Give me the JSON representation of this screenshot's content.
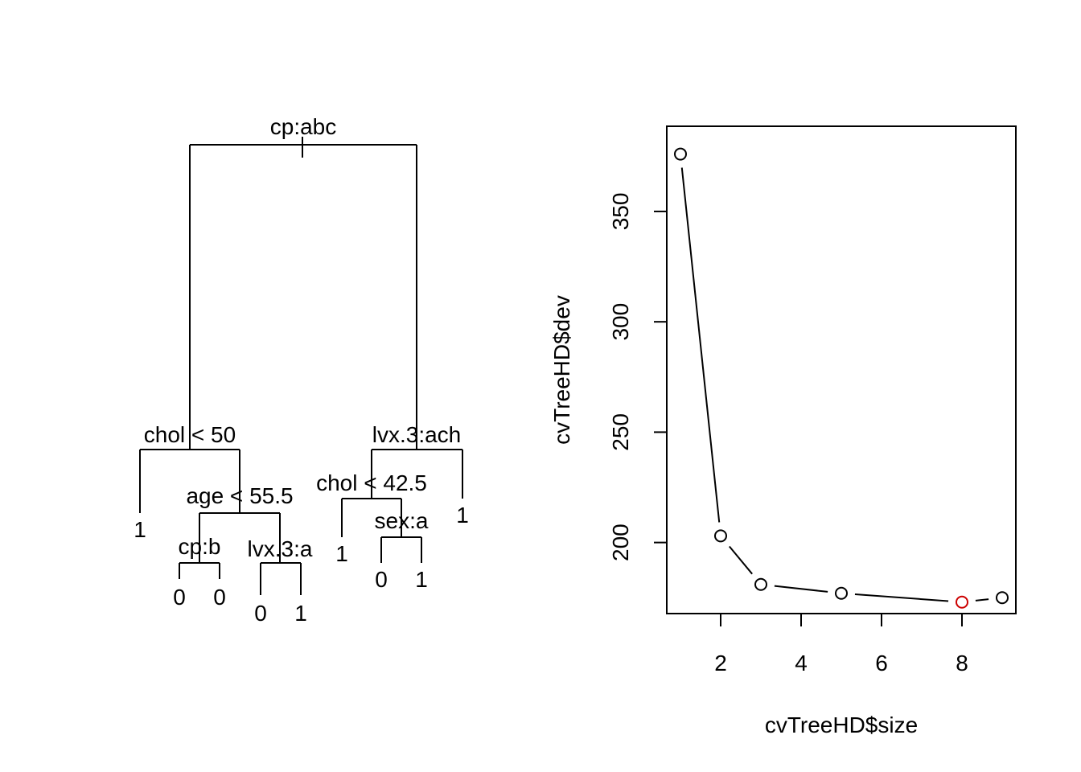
{
  "tree": {
    "nodes": [
      {
        "id": "root",
        "label": "cp:abc",
        "parent": null
      },
      {
        "id": "n_chol50",
        "label": "chol < 50",
        "parent": "root"
      },
      {
        "id": "n_lvxach",
        "label": "lvx.3:ach",
        "parent": "root"
      },
      {
        "id": "leaf_a",
        "label": "1",
        "parent": "n_chol50"
      },
      {
        "id": "n_age",
        "label": "age < 55.5",
        "parent": "n_chol50"
      },
      {
        "id": "n_cpb",
        "label": "cp:b",
        "parent": "n_age"
      },
      {
        "id": "n_lvxa",
        "label": "lvx.3:a",
        "parent": "n_age"
      },
      {
        "id": "leaf_b",
        "label": "0",
        "parent": "n_cpb"
      },
      {
        "id": "leaf_c",
        "label": "0",
        "parent": "n_cpb"
      },
      {
        "id": "leaf_d",
        "label": "0",
        "parent": "n_lvxa"
      },
      {
        "id": "leaf_e",
        "label": "1",
        "parent": "n_lvxa"
      },
      {
        "id": "n_chol425",
        "label": "chol < 42.5",
        "parent": "n_lvxach"
      },
      {
        "id": "leaf_f",
        "label": "1",
        "parent": "n_lvxach"
      },
      {
        "id": "leaf_g",
        "label": "1",
        "parent": "n_chol425"
      },
      {
        "id": "n_sexa",
        "label": "sex:a",
        "parent": "n_chol425"
      },
      {
        "id": "leaf_h",
        "label": "0",
        "parent": "n_sexa"
      },
      {
        "id": "leaf_i",
        "label": "1",
        "parent": "n_sexa"
      }
    ]
  },
  "chart_data": {
    "type": "line",
    "xlabel": "cvTreeHD$size",
    "ylabel": "cvTreeHD$dev",
    "x": [
      1,
      2,
      3,
      5,
      8,
      9
    ],
    "y": [
      376,
      203,
      181,
      177,
      173,
      175
    ],
    "xlim": [
      0.66,
      9.34
    ],
    "ylim": [
      167.8,
      388.6
    ],
    "xticks": [
      "2",
      "4",
      "6",
      "8"
    ],
    "yticks": [
      "200",
      "250",
      "300",
      "350"
    ],
    "highlight_index": 4,
    "point_color": "#000000",
    "highlight_color": "#cc0000",
    "grid": false
  }
}
